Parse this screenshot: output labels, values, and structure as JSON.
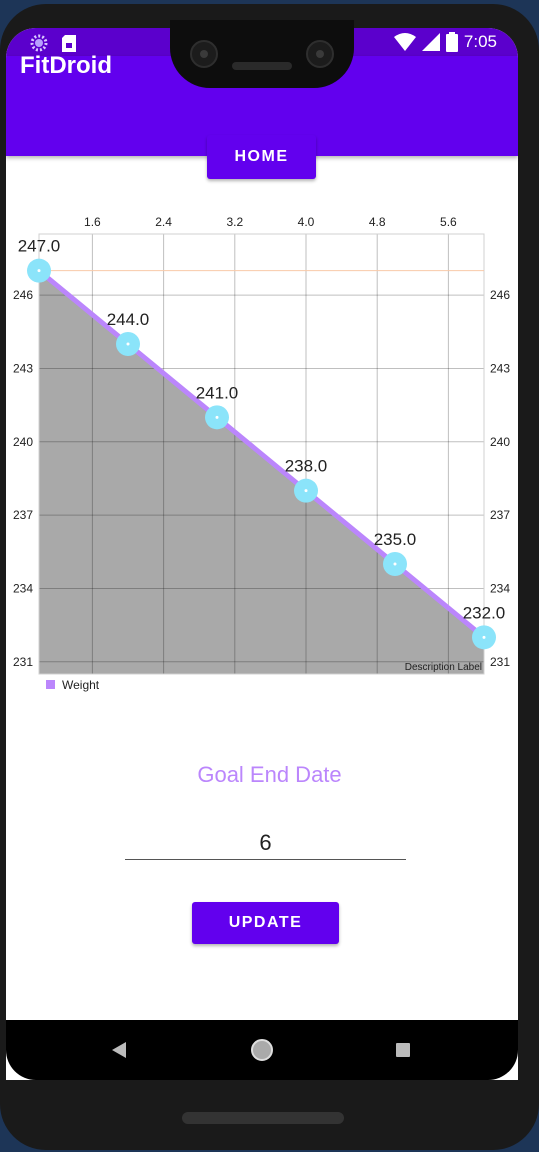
{
  "status_bar": {
    "time": "7:05",
    "icons": [
      "spinner-icon",
      "sim-card-icon",
      "wifi-icon",
      "cell-signal-icon",
      "battery-icon"
    ]
  },
  "app_bar": {
    "title": "FitDroid"
  },
  "home_button": {
    "label": "HOME"
  },
  "chart_data": {
    "type": "line",
    "x": [
      1,
      2,
      3,
      4,
      5,
      6
    ],
    "series": [
      {
        "name": "Weight",
        "values": [
          247.0,
          244.0,
          241.0,
          238.0,
          235.0,
          232.0
        ],
        "color": "#bb86fc",
        "fill": "#a9a9a9",
        "point_color": "#8be4fa"
      }
    ],
    "point_labels": [
      "247.0",
      "244.0",
      "241.0",
      "238.0",
      "235.0",
      "232.0"
    ],
    "x_ticks": [
      "1.6",
      "2.4",
      "3.2",
      "4.0",
      "4.8",
      "5.6"
    ],
    "y_ticks": [
      "231",
      "234",
      "237",
      "240",
      "243",
      "246"
    ],
    "xlim": [
      1,
      6
    ],
    "ylim": [
      230.5,
      248.5
    ],
    "x_axis_position": "top",
    "y_axes": "left-and-right",
    "grid": true,
    "description": "Description Label",
    "legend_position": "bottom-left",
    "limit_line_color": "#f8c9a8"
  },
  "goal": {
    "label": "Goal End Date",
    "value": "6"
  },
  "update_button": {
    "label": "UPDATE"
  },
  "nav_bar": {
    "icons": [
      "back-icon",
      "home-icon",
      "recents-icon"
    ]
  }
}
